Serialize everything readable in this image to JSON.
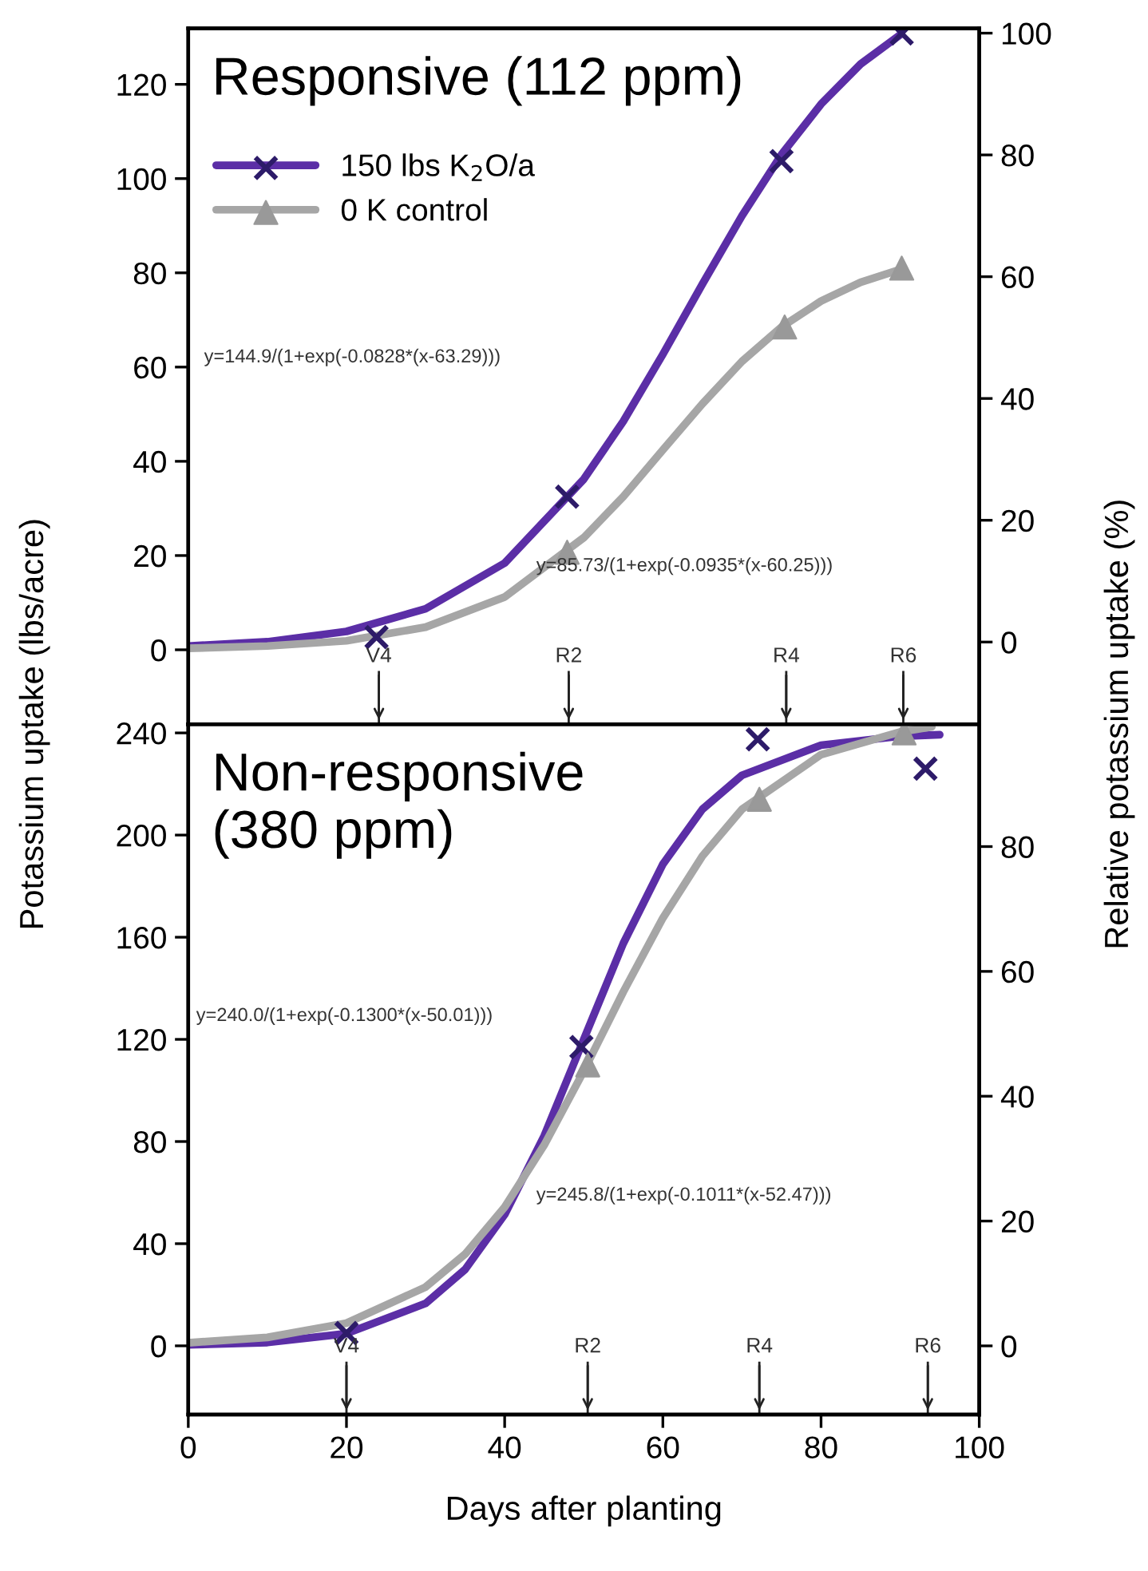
{
  "chart_data": [
    {
      "type": "line",
      "title": "Responsive (112 ppm)",
      "ylabel": "Potassium uptake (lbs/acre)",
      "y2label": "Relative potassium uptake (%)",
      "xlim": [
        0,
        100
      ],
      "xticks": [
        0,
        20,
        40,
        60,
        80,
        100
      ],
      "ylim": [
        -15.8,
        131.9
      ],
      "yticks": [
        0,
        20,
        40,
        60,
        80,
        100,
        120
      ],
      "y2lim": [
        -13.5,
        100.8
      ],
      "y2ticks": [
        0,
        20,
        40,
        60,
        80,
        100
      ],
      "tick_labels": "y",
      "grid": false,
      "legend": "top left",
      "series": [
        {
          "type": "scatter",
          "name": "150 lbs K$_{2}$O/a",
          "color": "#2d1b69",
          "marker": "cross",
          "x": [
            23.8,
            47.9,
            75,
            90.2
          ],
          "values": [
            2.7,
            32.5,
            103.7,
            130.8
          ]
        },
        {
          "color": "#5b2ea6",
          "line_style": "solid",
          "x": [
            0,
            10,
            20,
            30,
            40,
            50,
            55,
            60,
            65,
            70,
            75,
            80,
            85,
            90
          ],
          "values": [
            0.8,
            1.7,
            3.9,
            8.7,
            18.4,
            36.2,
            48.5,
            62.7,
            77.6,
            92.1,
            105.1,
            115.8,
            124.3,
            130.5
          ]
        },
        {
          "type": "scatter",
          "name": "0 K control",
          "color": "#999999",
          "marker": "triangle",
          "x": [
            47.9,
            75.4,
            90.2
          ],
          "values": [
            20.7,
            68.5,
            81
          ]
        },
        {
          "color": "#a6a6a6",
          "line_style": "solid",
          "x": [
            0,
            10,
            20,
            30,
            40,
            50,
            55,
            60,
            65,
            70,
            75,
            80,
            85,
            90
          ],
          "values": [
            0.3,
            0.8,
            1.9,
            4.8,
            11.2,
            23.8,
            32.5,
            42.4,
            52.2,
            61.2,
            68.5,
            74,
            78,
            80.7
          ]
        }
      ],
      "annotations": [
        "y=144.9/(1+exp(-0.0828*(x-63.29)))",
        "y=85.73/(1+exp(-0.0935*(x-60.25)))"
      ],
      "ref_lines": [
        {
          "axis": "x",
          "value": 24.1,
          "label": "V4"
        },
        {
          "axis": "x",
          "value": 48.1,
          "label": "R2"
        },
        {
          "axis": "x",
          "value": 75.6,
          "label": "R4"
        },
        {
          "axis": "x",
          "value": 90.4,
          "label": "R6"
        }
      ]
    },
    {
      "type": "line",
      "title": "Non-responsive\n(380 ppm)",
      "xlabel": "Days after planting",
      "xlim": [
        0,
        100
      ],
      "xticks": [
        0,
        20,
        40,
        60,
        80,
        100
      ],
      "ylim": [
        -26.9,
        243.4
      ],
      "yticks": [
        0,
        40,
        80,
        120,
        160,
        200,
        240
      ],
      "y2lim": [
        -11,
        99.6
      ],
      "y2ticks": [
        0,
        20,
        40,
        60,
        80
      ],
      "grid": false,
      "series": [
        {
          "type": "scatter",
          "color": "#2d1b69",
          "marker": "cross",
          "x": [
            20,
            49.7,
            72,
            93.2
          ],
          "values": [
            5,
            117,
            237.5,
            226
          ]
        },
        {
          "color": "#5b2ea6",
          "line_style": "solid",
          "x": [
            0,
            10,
            20,
            30,
            35,
            40,
            45,
            50,
            55,
            60,
            65,
            70,
            80,
            90,
            95
          ],
          "values": [
            0.4,
            1.3,
            4.8,
            16.6,
            29.9,
            51.4,
            82.2,
            120,
            157.6,
            188.6,
            210.1,
            223.4,
            235.2,
            238.7,
            239.3
          ]
        },
        {
          "type": "scatter",
          "color": "#999999",
          "marker": "triangle",
          "x": [
            50.5,
            72.2,
            90.5
          ],
          "values": [
            110,
            214,
            240
          ]
        },
        {
          "color": "#a6a6a6",
          "line_style": "solid",
          "x": [
            0,
            10,
            20,
            30,
            35,
            40,
            45,
            50,
            55,
            60,
            65,
            70,
            80,
            90,
            94
          ],
          "values": [
            1.2,
            3.3,
            8.9,
            23,
            35.9,
            54.3,
            78.6,
            107.6,
            138.6,
            167.5,
            191.8,
            210.1,
            231.5,
            240.4,
            242.4
          ]
        }
      ],
      "annotations": [
        "y=240.0/(1+exp(-0.1300*(x-50.01)))",
        "y=245.8/(1+exp(-0.1011*(x-52.47)))"
      ],
      "ref_lines": [
        {
          "axis": "x",
          "value": 20,
          "label": "V4"
        },
        {
          "axis": "x",
          "value": 50.5,
          "label": "R2"
        },
        {
          "axis": "x",
          "value": 72.2,
          "label": "R4"
        },
        {
          "axis": "x",
          "value": 93.5,
          "label": "R6"
        }
      ]
    }
  ]
}
